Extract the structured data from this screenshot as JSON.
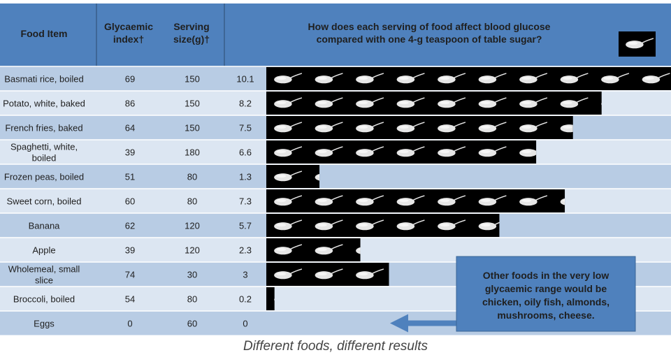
{
  "chart_data": {
    "type": "table",
    "headers": {
      "food_item": "Food Item",
      "gi_line1": "Glycaemic",
      "gi_line2": "index†",
      "serving_line1": "Serving",
      "serving_line2": "size(g)†",
      "question_line1": "How does each serving of food affect blood glucose",
      "question_line2": "compared with one 4-g teaspoon of table sugar?"
    },
    "rows": [
      {
        "food": [
          "Basmati rice, boiled"
        ],
        "gi": 69,
        "serving": 150,
        "teaspoons": 10.1
      },
      {
        "food": [
          "Potato, white, baked"
        ],
        "gi": 86,
        "serving": 150,
        "teaspoons": 8.2
      },
      {
        "food": [
          "French fries, baked"
        ],
        "gi": 64,
        "serving": 150,
        "teaspoons": 7.5
      },
      {
        "food": [
          "Spaghetti, white,",
          "boiled"
        ],
        "gi": 39,
        "serving": 180,
        "teaspoons": 6.6
      },
      {
        "food": [
          "Frozen peas, boiled"
        ],
        "gi": 51,
        "serving": 80,
        "teaspoons": 1.3
      },
      {
        "food": [
          "Sweet corn, boiled"
        ],
        "gi": 60,
        "serving": 80,
        "teaspoons": 7.3
      },
      {
        "food": [
          "Banana"
        ],
        "gi": 62,
        "serving": 120,
        "teaspoons": 5.7
      },
      {
        "food": [
          "Apple"
        ],
        "gi": 39,
        "serving": 120,
        "teaspoons": 2.3
      },
      {
        "food": [
          "Wholemeal, small",
          "slice"
        ],
        "gi": 74,
        "serving": 30,
        "teaspoons": 3
      },
      {
        "food": [
          "Broccoli, boiled"
        ],
        "gi": 54,
        "serving": 80,
        "teaspoons": 0.2
      },
      {
        "food": [
          "Eggs"
        ],
        "gi": 0,
        "serving": 60,
        "teaspoons": 0
      }
    ],
    "note_lines": [
      "Other foods in the very low",
      "glycaemic range would be",
      "chicken, oily fish, almonds,",
      "mushrooms, cheese."
    ]
  },
  "caption": "Different foods, different results",
  "colors": {
    "header": "#4f81bd",
    "header_text": "#1f1f1f",
    "row_dark": "#b8cce4",
    "row_light": "#dce6f2",
    "bar": "#000000",
    "spoon": "#e6e6e6",
    "note_box": "#4f81bd",
    "arrow": "#4f81bd"
  },
  "icons": {
    "teaspoon": "spoon-icon"
  }
}
